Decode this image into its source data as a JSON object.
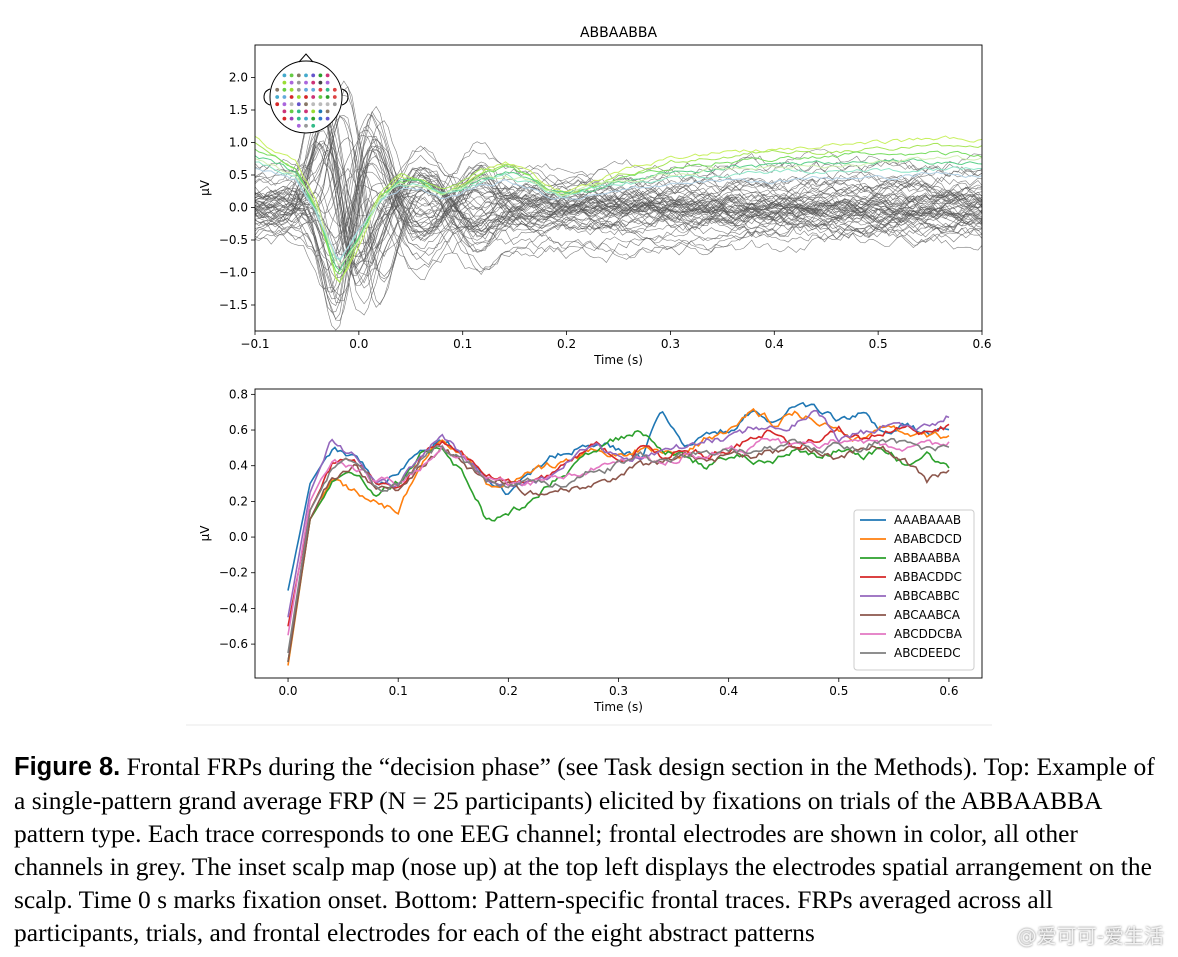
{
  "caption": {
    "label": "Figure 8.",
    "text": "Frontal FRPs during the “decision phase” (see Task design section in the Methods). Top: Example of a single-pattern grand average FRP (N = 25 participants) elicited by fixations on trials of the ABBAABBA pattern type. Each trace corresponds to one EEG channel; frontal electrodes are shown in color, all other channels in grey. The inset scalp map (nose up) at the top left displays the electrodes spatial arrangement on the scalp. Time 0 s marks fixation onset. Bottom: Pattern-specific frontal traces. FRPs averaged across all participants, trials, and frontal electrodes for each of the eight abstract patterns"
  },
  "watermark": "@爱可可-爱生活",
  "chart_data": [
    {
      "type": "line",
      "title": "ABBAABBA",
      "xlabel": "Time (s)",
      "ylabel": "µV",
      "xlim": [
        -0.1,
        0.6
      ],
      "ylim": [
        -1.9,
        2.5
      ],
      "xticks": [
        -0.1,
        0.0,
        0.1,
        0.2,
        0.3,
        0.4,
        0.5,
        0.6
      ],
      "xtick_labels": [
        "−0.1",
        "0.0",
        "0.1",
        "0.2",
        "0.3",
        "0.4",
        "0.5",
        "0.6"
      ],
      "yticks": [
        -1.5,
        -1.0,
        -0.5,
        0.0,
        0.5,
        1.0,
        1.5,
        2.0
      ],
      "ytick_labels": [
        "−1.5",
        "−1.0",
        "−0.5",
        "0.0",
        "0.5",
        "1.0",
        "1.5",
        "2.0"
      ],
      "grid": false,
      "inset": "scalp map (nose up), top-left",
      "x": [
        -0.1,
        -0.08,
        -0.06,
        -0.04,
        -0.02,
        0.0,
        0.02,
        0.04,
        0.06,
        0.08,
        0.1,
        0.12,
        0.14,
        0.16,
        0.18,
        0.2,
        0.22,
        0.25,
        0.3,
        0.35,
        0.4,
        0.45,
        0.5,
        0.55,
        0.6
      ],
      "series": [
        {
          "color": "#c8f060",
          "values": [
            1.1,
            0.85,
            0.7,
            0.1,
            -1.2,
            -0.6,
            0.2,
            0.45,
            0.4,
            0.2,
            0.4,
            0.6,
            0.7,
            0.6,
            0.35,
            0.2,
            0.3,
            0.55,
            0.75,
            0.85,
            0.9,
            0.95,
            1.0,
            1.05,
            1.05
          ]
        },
        {
          "color": "#a8e65a",
          "values": [
            1.0,
            0.8,
            0.6,
            0.0,
            -1.2,
            -0.5,
            0.2,
            0.5,
            0.45,
            0.25,
            0.4,
            0.55,
            0.65,
            0.5,
            0.3,
            0.2,
            0.3,
            0.5,
            0.7,
            0.8,
            0.85,
            0.85,
            0.9,
            0.95,
            0.95
          ]
        },
        {
          "color": "#78dd60",
          "values": [
            0.9,
            0.75,
            0.55,
            -0.1,
            -1.1,
            -0.5,
            0.15,
            0.45,
            0.4,
            0.2,
            0.35,
            0.5,
            0.6,
            0.5,
            0.3,
            0.2,
            0.3,
            0.45,
            0.6,
            0.7,
            0.75,
            0.8,
            0.8,
            0.85,
            0.8
          ]
        },
        {
          "color": "#5cd08a",
          "values": [
            0.8,
            0.7,
            0.5,
            -0.1,
            -1.0,
            -0.45,
            0.1,
            0.4,
            0.4,
            0.2,
            0.3,
            0.45,
            0.55,
            0.45,
            0.25,
            0.2,
            0.25,
            0.4,
            0.55,
            0.6,
            0.65,
            0.7,
            0.7,
            0.7,
            0.7
          ]
        },
        {
          "color": "#8ee6c8",
          "values": [
            0.7,
            0.6,
            0.45,
            -0.1,
            -0.9,
            -0.4,
            0.1,
            0.35,
            0.35,
            0.2,
            0.3,
            0.4,
            0.5,
            0.4,
            0.25,
            0.15,
            0.25,
            0.35,
            0.45,
            0.5,
            0.55,
            0.55,
            0.55,
            0.6,
            0.6
          ]
        },
        {
          "color": "#b4d2e6",
          "values": [
            0.6,
            0.5,
            0.4,
            -0.1,
            -0.8,
            -0.35,
            0.1,
            0.3,
            0.3,
            0.15,
            0.25,
            0.35,
            0.4,
            0.35,
            0.2,
            0.15,
            0.2,
            0.3,
            0.35,
            0.4,
            0.4,
            0.45,
            0.45,
            0.5,
            0.5
          ]
        },
        {
          "color": "#d2f0b4",
          "values": [
            0.75,
            0.65,
            0.5,
            0.0,
            -0.95,
            -0.5,
            0.15,
            0.4,
            0.35,
            0.2,
            0.35,
            0.45,
            0.5,
            0.45,
            0.3,
            0.2,
            0.3,
            0.4,
            0.5,
            0.6,
            0.65,
            0.65,
            0.7,
            0.75,
            0.75
          ]
        }
      ],
      "grey_channel_count": 55,
      "grey_color": "#555555"
    },
    {
      "type": "line",
      "title": "",
      "xlabel": "Time (s)",
      "ylabel": "µV",
      "xlim": [
        -0.03,
        0.63
      ],
      "ylim": [
        -0.79,
        0.83
      ],
      "xticks": [
        0.0,
        0.1,
        0.2,
        0.3,
        0.4,
        0.5,
        0.6
      ],
      "xtick_labels": [
        "0.0",
        "0.1",
        "0.2",
        "0.3",
        "0.4",
        "0.5",
        "0.6"
      ],
      "yticks": [
        -0.6,
        -0.4,
        -0.2,
        0.0,
        0.2,
        0.4,
        0.6,
        0.8
      ],
      "ytick_labels": [
        "−0.6",
        "−0.4",
        "−0.2",
        "0.0",
        "0.2",
        "0.4",
        "0.6",
        "0.8"
      ],
      "grid": false,
      "legend": "lower-right",
      "x": [
        0.0,
        0.02,
        0.04,
        0.06,
        0.08,
        0.1,
        0.12,
        0.14,
        0.16,
        0.18,
        0.2,
        0.22,
        0.24,
        0.26,
        0.28,
        0.3,
        0.32,
        0.34,
        0.36,
        0.38,
        0.4,
        0.42,
        0.44,
        0.46,
        0.48,
        0.5,
        0.52,
        0.54,
        0.56,
        0.58,
        0.6
      ],
      "series": [
        {
          "name": "AAABAAAB",
          "color": "#1f77b4",
          "values": [
            -0.3,
            0.3,
            0.5,
            0.45,
            0.3,
            0.35,
            0.5,
            0.55,
            0.45,
            0.35,
            0.25,
            0.35,
            0.45,
            0.5,
            0.55,
            0.5,
            0.45,
            0.7,
            0.5,
            0.55,
            0.6,
            0.7,
            0.65,
            0.72,
            0.7,
            0.65,
            0.68,
            0.6,
            0.62,
            0.58,
            0.6
          ]
        },
        {
          "name": "ABABCDCD",
          "color": "#ff7f0e",
          "values": [
            -0.72,
            0.1,
            0.3,
            0.25,
            0.2,
            0.15,
            0.4,
            0.55,
            0.45,
            0.3,
            0.3,
            0.35,
            0.4,
            0.45,
            0.5,
            0.45,
            0.5,
            0.5,
            0.45,
            0.55,
            0.6,
            0.72,
            0.65,
            0.7,
            0.65,
            0.6,
            0.55,
            0.6,
            0.58,
            0.55,
            0.55
          ]
        },
        {
          "name": "ABBAABBA",
          "color": "#2ca02c",
          "values": [
            -0.7,
            0.1,
            0.3,
            0.35,
            0.25,
            0.3,
            0.45,
            0.5,
            0.35,
            0.1,
            0.1,
            0.2,
            0.3,
            0.4,
            0.5,
            0.55,
            0.6,
            0.5,
            0.45,
            0.4,
            0.45,
            0.45,
            0.4,
            0.5,
            0.45,
            0.5,
            0.45,
            0.48,
            0.42,
            0.45,
            0.38
          ]
        },
        {
          "name": "ABBACDDC",
          "color": "#d62728",
          "values": [
            -0.5,
            0.15,
            0.4,
            0.45,
            0.3,
            0.25,
            0.45,
            0.55,
            0.45,
            0.35,
            0.3,
            0.3,
            0.35,
            0.45,
            0.5,
            0.45,
            0.5,
            0.45,
            0.5,
            0.45,
            0.5,
            0.55,
            0.6,
            0.5,
            0.55,
            0.6,
            0.55,
            0.6,
            0.62,
            0.58,
            0.62
          ]
        },
        {
          "name": "ABBCABBC",
          "color": "#9467bd",
          "values": [
            -0.45,
            0.25,
            0.55,
            0.45,
            0.3,
            0.3,
            0.45,
            0.55,
            0.45,
            0.35,
            0.3,
            0.3,
            0.35,
            0.45,
            0.5,
            0.45,
            0.45,
            0.5,
            0.5,
            0.55,
            0.55,
            0.6,
            0.6,
            0.65,
            0.72,
            0.55,
            0.58,
            0.6,
            0.62,
            0.62,
            0.68
          ]
        },
        {
          "name": "ABCAABCA",
          "color": "#8c564b",
          "values": [
            -0.7,
            0.1,
            0.35,
            0.4,
            0.25,
            0.25,
            0.4,
            0.5,
            0.4,
            0.3,
            0.3,
            0.25,
            0.25,
            0.28,
            0.3,
            0.35,
            0.4,
            0.4,
            0.45,
            0.45,
            0.45,
            0.45,
            0.48,
            0.5,
            0.48,
            0.45,
            0.48,
            0.5,
            0.45,
            0.3,
            0.38
          ]
        },
        {
          "name": "ABCDDCBA",
          "color": "#e377c2",
          "values": [
            -0.55,
            0.2,
            0.45,
            0.4,
            0.3,
            0.3,
            0.4,
            0.5,
            0.45,
            0.35,
            0.3,
            0.3,
            0.32,
            0.35,
            0.4,
            0.4,
            0.45,
            0.4,
            0.45,
            0.45,
            0.5,
            0.5,
            0.55,
            0.5,
            0.5,
            0.55,
            0.55,
            0.52,
            0.5,
            0.5,
            0.52
          ]
        },
        {
          "name": "ABCDEEDC",
          "color": "#7f7f7f",
          "values": [
            -0.65,
            0.15,
            0.38,
            0.42,
            0.28,
            0.28,
            0.42,
            0.52,
            0.42,
            0.32,
            0.28,
            0.3,
            0.3,
            0.33,
            0.38,
            0.4,
            0.45,
            0.42,
            0.45,
            0.48,
            0.5,
            0.48,
            0.5,
            0.55,
            0.5,
            0.52,
            0.5,
            0.55,
            0.52,
            0.5,
            0.5
          ]
        }
      ]
    }
  ]
}
